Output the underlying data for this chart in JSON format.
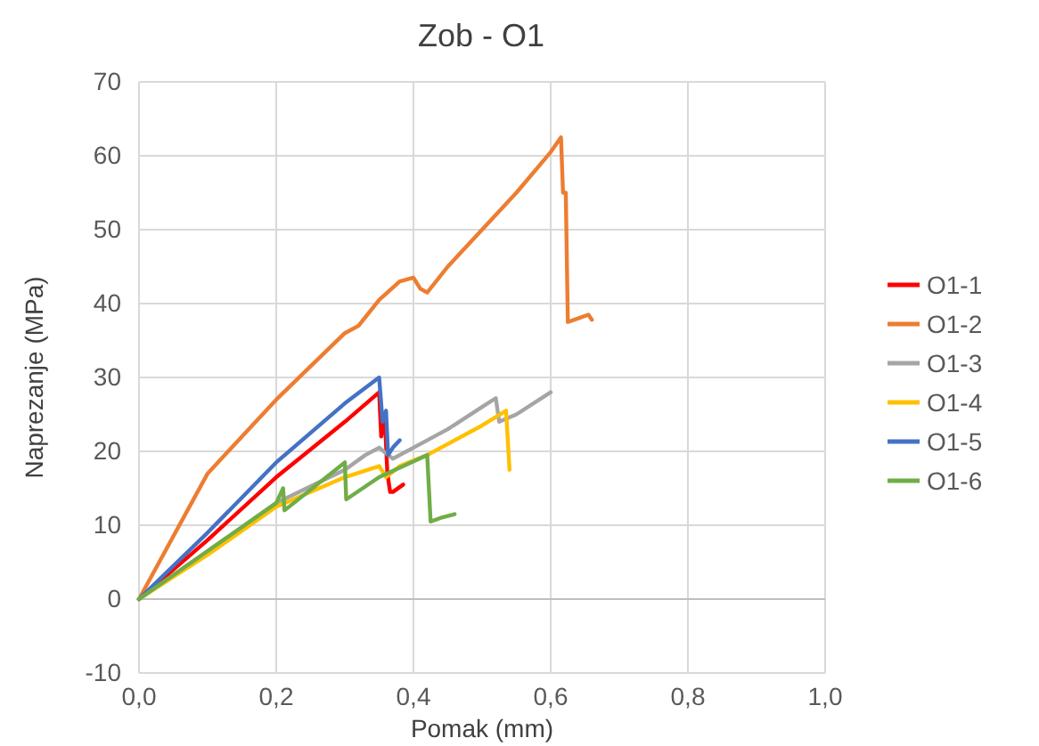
{
  "chart_data": {
    "type": "line",
    "title": "Zob - O1",
    "xlabel": "Pomak (mm)",
    "ylabel": "Naprezanje  (MPa)",
    "xlim": [
      0,
      1
    ],
    "xticks": [
      {
        "value": 0,
        "label": "0,0"
      },
      {
        "value": 0.2,
        "label": "0,2"
      },
      {
        "value": 0.4,
        "label": "0,4"
      },
      {
        "value": 0.6,
        "label": "0,6"
      },
      {
        "value": 0.8,
        "label": "0,8"
      },
      {
        "value": 1,
        "label": "1,0"
      }
    ],
    "ylim": [
      -10,
      70
    ],
    "yticks": [
      -10,
      0,
      10,
      20,
      30,
      40,
      50,
      60,
      70
    ],
    "grid": true,
    "legend": "right",
    "marker": "none",
    "line_style": "solid",
    "series": [
      {
        "name": "O1-1",
        "color": "#ff0000",
        "x": [
          0,
          0.1,
          0.2,
          0.3,
          0.35,
          0.353,
          0.358,
          0.362,
          0.366,
          0.37,
          0.385
        ],
        "values": [
          0,
          8,
          16.5,
          24,
          28,
          22,
          25,
          17,
          14.5,
          14.5,
          15.5
        ]
      },
      {
        "name": "O1-2",
        "color": "#ed7d31",
        "x": [
          0,
          0.1,
          0.2,
          0.3,
          0.32,
          0.35,
          0.38,
          0.4,
          0.41,
          0.42,
          0.45,
          0.5,
          0.55,
          0.6,
          0.615,
          0.618,
          0.622,
          0.625,
          0.64,
          0.655,
          0.66
        ],
        "values": [
          0,
          17,
          27,
          36,
          37,
          40.5,
          43,
          43.5,
          42,
          41.5,
          45,
          50,
          55,
          60.5,
          62.5,
          55,
          55,
          37.5,
          38,
          38.5,
          37.8
        ]
      },
      {
        "name": "O1-3",
        "color": "#a5a5a5",
        "x": [
          0,
          0.1,
          0.2,
          0.3,
          0.33,
          0.35,
          0.37,
          0.4,
          0.45,
          0.5,
          0.52,
          0.525,
          0.55,
          0.6
        ],
        "values": [
          0,
          6.5,
          13,
          17.5,
          19.5,
          20.5,
          19,
          20.5,
          23,
          26,
          27.2,
          24,
          25,
          28
        ]
      },
      {
        "name": "O1-4",
        "color": "#ffc000",
        "x": [
          0,
          0.1,
          0.2,
          0.3,
          0.35,
          0.36,
          0.38,
          0.42,
          0.5,
          0.535,
          0.54
        ],
        "values": [
          0,
          6,
          12.5,
          16.5,
          18,
          16.5,
          18,
          19.5,
          23.5,
          25.5,
          17.5
        ]
      },
      {
        "name": "O1-5",
        "color": "#4472c4",
        "x": [
          0,
          0.1,
          0.2,
          0.3,
          0.35,
          0.355,
          0.36,
          0.363,
          0.37,
          0.38
        ],
        "values": [
          0,
          9,
          18.5,
          26.5,
          30,
          24,
          25.5,
          19.5,
          20.5,
          21.5
        ]
      },
      {
        "name": "O1-6",
        "color": "#70ad47",
        "x": [
          0,
          0.1,
          0.2,
          0.21,
          0.212,
          0.3,
          0.302,
          0.35,
          0.42,
          0.425,
          0.44,
          0.46
        ],
        "values": [
          0,
          6.5,
          13,
          15,
          12,
          18.5,
          13.5,
          16.5,
          19.5,
          10.5,
          11,
          11.5
        ]
      }
    ]
  }
}
